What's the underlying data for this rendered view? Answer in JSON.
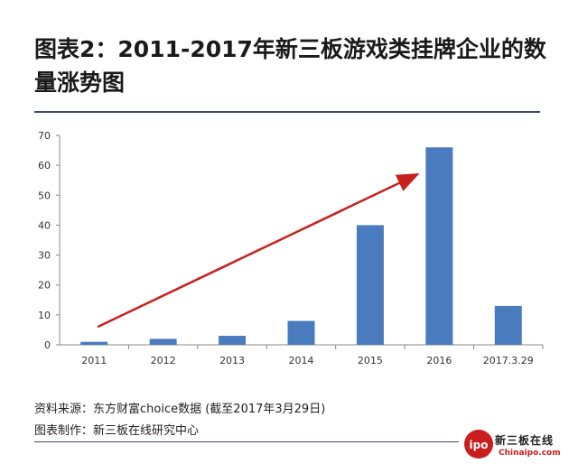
{
  "title": "图表2：2011-2017年新三板游戏类挂牌企业的数量涨势图",
  "footer": {
    "source": "资料来源：东方财富choice数据 (截至2017年3月29日)",
    "producer": "图表制作：新三板在线研究中心"
  },
  "logo": {
    "text": "新三板在线",
    "sub": "Chinaipo.com",
    "badge": "ipo"
  },
  "chart_data": {
    "type": "bar",
    "categories": [
      "2011",
      "2012",
      "2013",
      "2014",
      "2015",
      "2016",
      "2017.3.29"
    ],
    "values": [
      1,
      2,
      3,
      8,
      40,
      66,
      13
    ],
    "ylim": [
      0,
      70
    ],
    "yticks": [
      "0",
      "10",
      "20",
      "30",
      "40",
      "50",
      "60",
      "70"
    ],
    "bar_color": "#4a7bbf",
    "trend_arrow_color": "#c8201e",
    "grid": false
  }
}
